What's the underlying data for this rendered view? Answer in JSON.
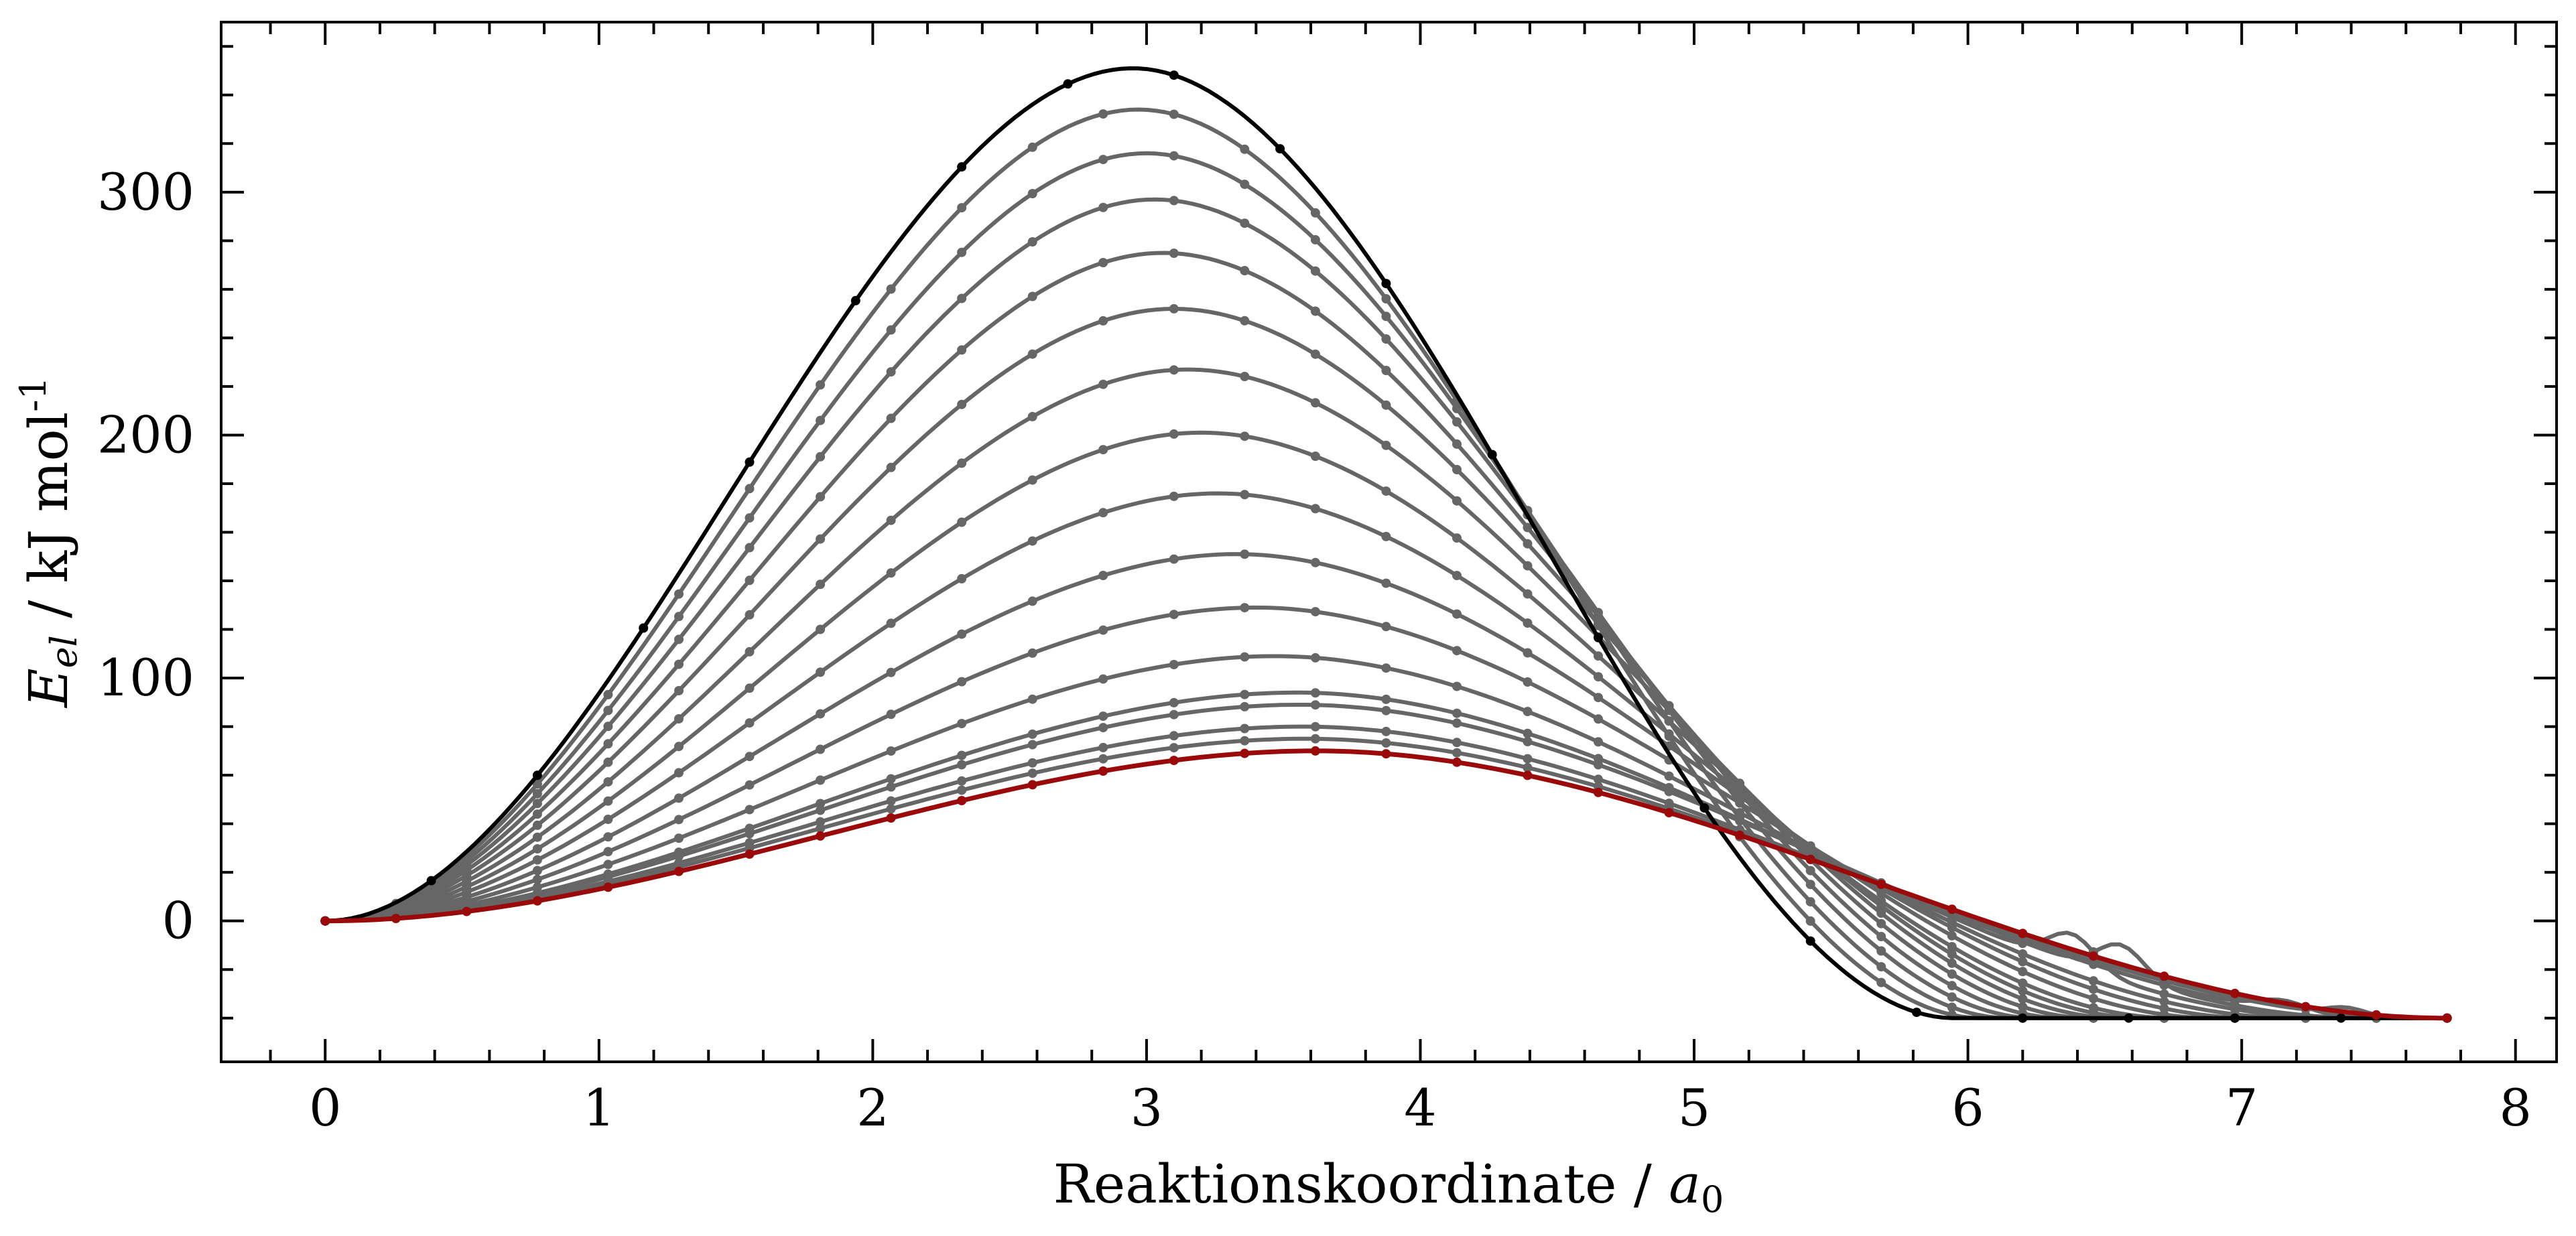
{
  "chart_data": {
    "type": "line",
    "title": "",
    "xlabel": {
      "text": "Reaktionskoordinate / ",
      "var": "a",
      "sub": "0"
    },
    "ylabel": {
      "var": "E",
      "sub": "el",
      "text": " / kJ mol",
      "sup": "-1"
    },
    "xlim": [
      -0.38,
      8.15
    ],
    "ylim": [
      -58,
      370
    ],
    "xticks": [
      0,
      1,
      2,
      3,
      4,
      5,
      6,
      7,
      8
    ],
    "yticks": [
      0,
      100,
      200,
      300
    ],
    "xminor_step": 0.2,
    "yminor_step": 20,
    "grid": false,
    "legend": "none",
    "colors": {
      "initial": "#000000",
      "intermediate": "#666666",
      "final": "#9b0a0a"
    },
    "series": [
      {
        "role": "initial",
        "peak": 351,
        "center": 2.95,
        "width": 1.32,
        "end_x": 5.95,
        "min": -40,
        "npoints": 20,
        "bump": null
      },
      {
        "role": "intermediate",
        "peak": 334,
        "center": 2.97,
        "width": 1.29,
        "end_x": 6.05,
        "min": -40,
        "npoints": 30,
        "bump": null
      },
      {
        "role": "intermediate",
        "peak": 316,
        "center": 3.0,
        "width": 1.26,
        "end_x": 6.15,
        "min": -40,
        "npoints": 30,
        "bump": null
      },
      {
        "role": "intermediate",
        "peak": 297,
        "center": 3.03,
        "width": 1.23,
        "end_x": 6.25,
        "min": -40,
        "npoints": 30,
        "bump": null
      },
      {
        "role": "intermediate",
        "peak": 275,
        "center": 3.06,
        "width": 1.2,
        "end_x": 6.35,
        "min": -40,
        "npoints": 30,
        "bump": null
      },
      {
        "role": "intermediate",
        "peak": 252,
        "center": 3.1,
        "width": 1.17,
        "end_x": 6.45,
        "min": -40,
        "npoints": 30,
        "bump": null
      },
      {
        "role": "intermediate",
        "peak": 227,
        "center": 3.15,
        "width": 1.14,
        "end_x": 6.55,
        "min": -40,
        "npoints": 30,
        "bump": null
      },
      {
        "role": "intermediate",
        "peak": 201,
        "center": 3.2,
        "width": 1.11,
        "end_x": 6.65,
        "min": -40,
        "npoints": 30,
        "bump": null
      },
      {
        "role": "intermediate",
        "peak": 176,
        "center": 3.26,
        "width": 1.08,
        "end_x": 6.75,
        "min": -40,
        "npoints": 30,
        "bump": null
      },
      {
        "role": "intermediate",
        "peak": 151,
        "center": 3.33,
        "width": 1.05,
        "end_x": 6.9,
        "min": -40,
        "npoints": 30,
        "bump": null
      },
      {
        "role": "intermediate",
        "peak": 129,
        "center": 3.4,
        "width": 1.02,
        "end_x": 7.05,
        "min": -40,
        "npoints": 30,
        "bump": null
      },
      {
        "role": "intermediate",
        "peak": 109,
        "center": 3.47,
        "width": 1.0,
        "end_x": 7.2,
        "min": -40,
        "npoints": 30,
        "bump": null
      },
      {
        "role": "intermediate",
        "peak": 94,
        "center": 3.55,
        "width": 0.98,
        "end_x": 7.35,
        "min": -40,
        "npoints": 30,
        "bump": [
          6.38,
          13,
          0.12
        ]
      },
      {
        "role": "intermediate",
        "peak": 89,
        "center": 3.56,
        "width": 0.97,
        "end_x": 7.45,
        "min": -40,
        "npoints": 30,
        "bump": [
          6.56,
          13,
          0.12
        ]
      },
      {
        "role": "intermediate",
        "peak": 80,
        "center": 3.57,
        "width": 0.96,
        "end_x": 7.55,
        "min": -40,
        "npoints": 30,
        "bump": [
          7.15,
          4,
          0.12
        ]
      },
      {
        "role": "intermediate",
        "peak": 75,
        "center": 3.58,
        "width": 0.95,
        "end_x": 7.65,
        "min": -40,
        "npoints": 30,
        "bump": [
          7.38,
          3,
          0.1
        ]
      },
      {
        "role": "final",
        "peak": 70,
        "center": 3.62,
        "width": 0.95,
        "end_x": 7.75,
        "min": -40,
        "npoints": 30,
        "bump": null
      }
    ]
  }
}
